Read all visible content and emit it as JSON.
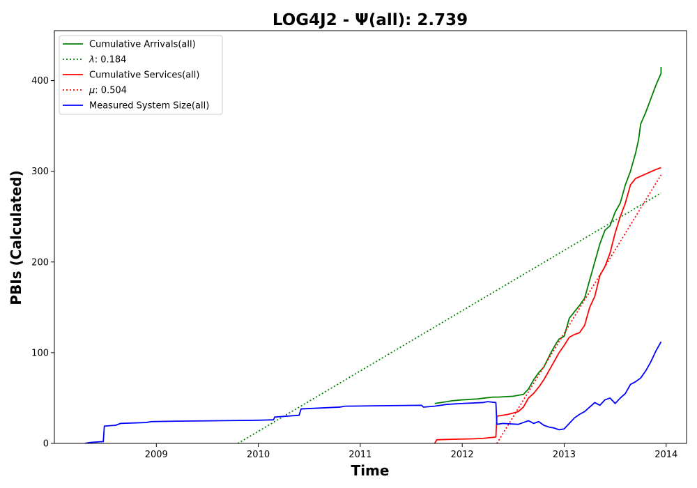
{
  "chart_data": {
    "type": "line",
    "title": "LOG4J2 -  Ψ(all): 2.739",
    "xlabel": "Time",
    "ylabel": "PBIs (Calculated)",
    "xlim": [
      2008.0,
      2014.2
    ],
    "ylim": [
      0,
      455
    ],
    "x_ticks": [
      2009,
      2010,
      2011,
      2012,
      2013,
      2014
    ],
    "y_ticks": [
      0,
      100,
      200,
      300,
      400
    ],
    "grid": false,
    "legend_position": "upper-left",
    "series": [
      {
        "name": "Cumulative Arrivals(all)",
        "color": "#008000",
        "style": "solid",
        "points": [
          [
            2011.73,
            44
          ],
          [
            2011.85,
            46
          ],
          [
            2011.9,
            47
          ],
          [
            2012.0,
            48
          ],
          [
            2012.15,
            49
          ],
          [
            2012.22,
            50
          ],
          [
            2012.3,
            51
          ],
          [
            2012.35,
            51
          ],
          [
            2012.5,
            52
          ],
          [
            2012.55,
            53
          ],
          [
            2012.6,
            54
          ],
          [
            2012.65,
            60
          ],
          [
            2012.7,
            70
          ],
          [
            2012.75,
            78
          ],
          [
            2012.8,
            84
          ],
          [
            2012.87,
            100
          ],
          [
            2012.92,
            110
          ],
          [
            2012.95,
            115
          ],
          [
            2013.0,
            118
          ],
          [
            2013.03,
            130
          ],
          [
            2013.05,
            138
          ],
          [
            2013.1,
            145
          ],
          [
            2013.15,
            152
          ],
          [
            2013.2,
            160
          ],
          [
            2013.25,
            180
          ],
          [
            2013.3,
            200
          ],
          [
            2013.35,
            220
          ],
          [
            2013.4,
            235
          ],
          [
            2013.45,
            240
          ],
          [
            2013.5,
            255
          ],
          [
            2013.55,
            265
          ],
          [
            2013.6,
            285
          ],
          [
            2013.65,
            300
          ],
          [
            2013.7,
            320
          ],
          [
            2013.73,
            335
          ],
          [
            2013.75,
            352
          ],
          [
            2013.8,
            365
          ],
          [
            2013.85,
            380
          ],
          [
            2013.9,
            395
          ],
          [
            2013.95,
            408
          ],
          [
            2013.95,
            415
          ]
        ]
      },
      {
        "name": "λ: 0.184",
        "color": "#008000",
        "style": "dotted",
        "points": [
          [
            2009.8,
            0
          ],
          [
            2013.95,
            276
          ]
        ]
      },
      {
        "name": "Cumulative Services(all)",
        "color": "#ff0000",
        "style": "solid",
        "points": [
          [
            2011.73,
            0
          ],
          [
            2011.75,
            4
          ],
          [
            2011.9,
            4.5
          ],
          [
            2012.1,
            5
          ],
          [
            2012.2,
            5.5
          ],
          [
            2012.33,
            7
          ],
          [
            2012.34,
            30
          ],
          [
            2012.45,
            32
          ],
          [
            2012.55,
            35
          ],
          [
            2012.6,
            40
          ],
          [
            2012.65,
            50
          ],
          [
            2012.7,
            55
          ],
          [
            2012.75,
            62
          ],
          [
            2012.8,
            70
          ],
          [
            2012.85,
            80
          ],
          [
            2012.9,
            90
          ],
          [
            2012.95,
            100
          ],
          [
            2013.0,
            108
          ],
          [
            2013.05,
            117
          ],
          [
            2013.1,
            120
          ],
          [
            2013.15,
            122
          ],
          [
            2013.2,
            130
          ],
          [
            2013.25,
            150
          ],
          [
            2013.3,
            162
          ],
          [
            2013.35,
            185
          ],
          [
            2013.4,
            195
          ],
          [
            2013.45,
            210
          ],
          [
            2013.5,
            232
          ],
          [
            2013.55,
            250
          ],
          [
            2013.6,
            265
          ],
          [
            2013.65,
            285
          ],
          [
            2013.7,
            292
          ],
          [
            2013.8,
            297
          ],
          [
            2013.9,
            302
          ],
          [
            2013.95,
            304
          ]
        ]
      },
      {
        "name": "μ: 0.504",
        "color": "#ff0000",
        "style": "dotted",
        "points": [
          [
            2012.34,
            0
          ],
          [
            2013.95,
            296
          ]
        ]
      },
      {
        "name": "Measured System Size(all)",
        "color": "#0000ff",
        "style": "solid",
        "points": [
          [
            2008.3,
            0
          ],
          [
            2008.35,
            1
          ],
          [
            2008.48,
            2
          ],
          [
            2008.49,
            19
          ],
          [
            2008.6,
            20
          ],
          [
            2008.65,
            22
          ],
          [
            2008.9,
            23
          ],
          [
            2008.95,
            24
          ],
          [
            2009.2,
            24.5
          ],
          [
            2009.6,
            25
          ],
          [
            2010.0,
            25.5
          ],
          [
            2010.15,
            26
          ],
          [
            2010.16,
            29
          ],
          [
            2010.4,
            31
          ],
          [
            2010.42,
            38
          ],
          [
            2010.8,
            40
          ],
          [
            2010.85,
            41
          ],
          [
            2011.2,
            41.5
          ],
          [
            2011.6,
            42
          ],
          [
            2011.62,
            40
          ],
          [
            2011.73,
            41
          ],
          [
            2011.85,
            43
          ],
          [
            2012.0,
            44
          ],
          [
            2012.2,
            45
          ],
          [
            2012.25,
            46
          ],
          [
            2012.33,
            45
          ],
          [
            2012.34,
            21
          ],
          [
            2012.4,
            22
          ],
          [
            2012.55,
            21
          ],
          [
            2012.6,
            23
          ],
          [
            2012.65,
            25
          ],
          [
            2012.7,
            22
          ],
          [
            2012.75,
            24
          ],
          [
            2012.8,
            20
          ],
          [
            2012.85,
            18
          ],
          [
            2012.9,
            17
          ],
          [
            2012.95,
            15
          ],
          [
            2013.0,
            16
          ],
          [
            2013.05,
            22
          ],
          [
            2013.1,
            28
          ],
          [
            2013.15,
            32
          ],
          [
            2013.2,
            35
          ],
          [
            2013.25,
            40
          ],
          [
            2013.3,
            45
          ],
          [
            2013.35,
            42
          ],
          [
            2013.4,
            48
          ],
          [
            2013.45,
            50
          ],
          [
            2013.5,
            44
          ],
          [
            2013.55,
            50
          ],
          [
            2013.6,
            55
          ],
          [
            2013.65,
            65
          ],
          [
            2013.7,
            68
          ],
          [
            2013.75,
            72
          ],
          [
            2013.8,
            80
          ],
          [
            2013.85,
            90
          ],
          [
            2013.9,
            102
          ],
          [
            2013.95,
            112
          ]
        ]
      }
    ]
  }
}
